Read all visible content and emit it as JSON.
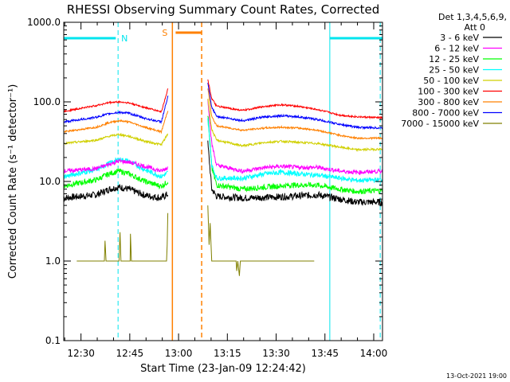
{
  "chart_data": {
    "type": "line",
    "title": "RHESSI Observing Summary Count Rates, Corrected",
    "xlabel": "Start Time (23-Jan-09 12:24:42)",
    "ylabel": "Corrected Count Rate (s⁻¹ detector⁻¹)",
    "y_scale": "log",
    "ylim": [
      0.1,
      1000
    ],
    "xlim_min": [
      0,
      98
    ],
    "x_ticks": [
      {
        "label": "12:30",
        "min": 5.3
      },
      {
        "label": "12:45",
        "min": 20.3
      },
      {
        "label": "13:00",
        "min": 35.3
      },
      {
        "label": "13:15",
        "min": 50.3
      },
      {
        "label": "13:30",
        "min": 65.3
      },
      {
        "label": "13:45",
        "min": 80.3
      },
      {
        "label": "14:00",
        "min": 95.3
      }
    ],
    "y_ticks": [
      {
        "label": "0.1",
        "value": 0.1
      },
      {
        "label": "1.0",
        "value": 1
      },
      {
        "label": "10.0",
        "value": 10
      },
      {
        "label": "100.0",
        "value": 100
      },
      {
        "label": "1000.0",
        "value": 1000
      }
    ],
    "legend_header": [
      "Det 1,3,4,5,6,9,",
      "Att 0"
    ],
    "legend_position": "right",
    "gap_min": [
      32.4,
      44.2
    ],
    "series": [
      {
        "name": "3 - 6 keV",
        "color": "#000000",
        "noise": 0.1,
        "points": [
          [
            0,
            6.2
          ],
          [
            10,
            6.8
          ],
          [
            14,
            8
          ],
          [
            17,
            8.5
          ],
          [
            20,
            8
          ],
          [
            25,
            6.7
          ],
          [
            30,
            6.2
          ],
          [
            32.1,
            7
          ]
        ],
        "points2": [
          [
            44.3,
            30
          ],
          [
            45.5,
            8
          ],
          [
            47,
            6.5
          ],
          [
            55,
            6.2
          ],
          [
            62,
            6.3
          ],
          [
            70,
            6.5
          ],
          [
            78,
            6.8
          ],
          [
            85,
            6
          ],
          [
            90,
            5.5
          ],
          [
            98,
            5.5
          ]
        ]
      },
      {
        "name": "6 - 12 keV",
        "color": "#ff00ff",
        "noise": 0.06,
        "points": [
          [
            0,
            13.5
          ],
          [
            10,
            14.5
          ],
          [
            14,
            16.5
          ],
          [
            17,
            18
          ],
          [
            20,
            17.5
          ],
          [
            25,
            15.5
          ],
          [
            30,
            13.5
          ],
          [
            32.1,
            15
          ]
        ],
        "points2": [
          [
            44.3,
            110
          ],
          [
            45.5,
            30
          ],
          [
            47,
            16
          ],
          [
            55,
            13.5
          ],
          [
            62,
            15
          ],
          [
            67,
            15.5
          ],
          [
            72,
            15
          ],
          [
            78,
            15
          ],
          [
            85,
            13.5
          ],
          [
            90,
            13
          ],
          [
            98,
            13.5
          ]
        ]
      },
      {
        "name": "12 - 25 keV",
        "color": "#00ff00",
        "noise": 0.08,
        "points": [
          [
            0,
            8.8
          ],
          [
            10,
            10.5
          ],
          [
            14,
            12.5
          ],
          [
            17,
            13.5
          ],
          [
            20,
            12.5
          ],
          [
            25,
            10
          ],
          [
            30,
            8.7
          ],
          [
            32.1,
            10
          ]
        ],
        "points2": [
          [
            44.3,
            70
          ],
          [
            45.5,
            15
          ],
          [
            47,
            9
          ],
          [
            55,
            8
          ],
          [
            62,
            8.5
          ],
          [
            70,
            9
          ],
          [
            78,
            9
          ],
          [
            85,
            8
          ],
          [
            90,
            7.5
          ],
          [
            98,
            7.7
          ]
        ]
      },
      {
        "name": "25 - 50 keV",
        "color": "#00ffff",
        "noise": 0.07,
        "points": [
          [
            0,
            11.5
          ],
          [
            10,
            14
          ],
          [
            14,
            17
          ],
          [
            17,
            19
          ],
          [
            20,
            18
          ],
          [
            25,
            14
          ],
          [
            30,
            11.5
          ],
          [
            32.1,
            13
          ]
        ],
        "points2": [
          [
            44.3,
            60
          ],
          [
            45.5,
            16
          ],
          [
            47,
            11
          ],
          [
            55,
            11
          ],
          [
            62,
            12.5
          ],
          [
            67,
            13
          ],
          [
            72,
            12.5
          ],
          [
            78,
            12
          ],
          [
            85,
            11
          ],
          [
            90,
            10.3
          ],
          [
            98,
            10.5
          ]
        ]
      },
      {
        "name": "50 - 100 keV",
        "color": "#d0d000",
        "noise": 0.03,
        "points": [
          [
            0,
            30
          ],
          [
            10,
            33
          ],
          [
            14,
            37
          ],
          [
            17,
            39
          ],
          [
            20,
            37
          ],
          [
            25,
            32
          ],
          [
            30,
            29
          ],
          [
            32.1,
            40
          ]
        ],
        "points2": [
          [
            44.3,
            110
          ],
          [
            45.5,
            45
          ],
          [
            47,
            33
          ],
          [
            55,
            28
          ],
          [
            62,
            31
          ],
          [
            67,
            32
          ],
          [
            72,
            31
          ],
          [
            78,
            30
          ],
          [
            85,
            27
          ],
          [
            90,
            25
          ],
          [
            98,
            25.5
          ]
        ]
      },
      {
        "name": "100 - 300 keV",
        "color": "#ff0000",
        "noise": 0.025,
        "points": [
          [
            0,
            76
          ],
          [
            10,
            90
          ],
          [
            14,
            98
          ],
          [
            17,
            100
          ],
          [
            20,
            97
          ],
          [
            25,
            85
          ],
          [
            30,
            75
          ],
          [
            32.1,
            150
          ]
        ],
        "points2": [
          [
            44.3,
            190
          ],
          [
            45.5,
            110
          ],
          [
            47,
            88
          ],
          [
            55,
            78
          ],
          [
            62,
            88
          ],
          [
            67,
            92
          ],
          [
            72,
            88
          ],
          [
            78,
            80
          ],
          [
            85,
            68
          ],
          [
            90,
            65
          ],
          [
            98,
            63
          ]
        ]
      },
      {
        "name": "300 - 800 keV",
        "color": "#ff8000",
        "noise": 0.025,
        "points": [
          [
            0,
            42
          ],
          [
            10,
            48
          ],
          [
            14,
            55
          ],
          [
            17,
            58
          ],
          [
            20,
            56
          ],
          [
            25,
            48
          ],
          [
            30,
            42
          ],
          [
            32.1,
            80
          ]
        ],
        "points2": [
          [
            44.3,
            150
          ],
          [
            45.5,
            65
          ],
          [
            47,
            50
          ],
          [
            55,
            44
          ],
          [
            62,
            47
          ],
          [
            67,
            48
          ],
          [
            72,
            47
          ],
          [
            78,
            44
          ],
          [
            85,
            38
          ],
          [
            90,
            35
          ],
          [
            98,
            35
          ]
        ]
      },
      {
        "name": "800 - 7000 keV",
        "color": "#0000ff",
        "noise": 0.03,
        "points": [
          [
            0,
            56
          ],
          [
            10,
            64
          ],
          [
            14,
            71
          ],
          [
            17,
            74
          ],
          [
            20,
            72
          ],
          [
            25,
            62
          ],
          [
            30,
            56
          ],
          [
            32.1,
            120
          ]
        ],
        "points2": [
          [
            44.3,
            170
          ],
          [
            45.5,
            85
          ],
          [
            47,
            66
          ],
          [
            55,
            58
          ],
          [
            62,
            65
          ],
          [
            67,
            67
          ],
          [
            72,
            65
          ],
          [
            78,
            60
          ],
          [
            85,
            52
          ],
          [
            90,
            48
          ],
          [
            98,
            47
          ]
        ]
      },
      {
        "name": "7000 - 15000 keV",
        "color": "#808000",
        "noise": 0,
        "points": [
          [
            4,
            1
          ],
          [
            12.5,
            1
          ],
          [
            12.7,
            1.8
          ],
          [
            13,
            1
          ],
          [
            17,
            1
          ],
          [
            17.3,
            2.3
          ],
          [
            17.6,
            1
          ],
          [
            19,
            1
          ],
          [
            20.4,
            1
          ],
          [
            20.5,
            2.2
          ],
          [
            20.8,
            1
          ],
          [
            22,
            1
          ],
          [
            30,
            1
          ],
          [
            31.6,
            1
          ],
          [
            31.8,
            1.6
          ],
          [
            32,
            4
          ]
        ],
        "points2": [
          [
            44.3,
            5
          ],
          [
            44.7,
            1.6
          ],
          [
            45,
            3
          ],
          [
            45.5,
            1
          ],
          [
            50,
            1
          ],
          [
            53,
            1
          ],
          [
            53.2,
            0.75
          ],
          [
            53.5,
            1
          ],
          [
            54,
            0.65
          ],
          [
            54.3,
            1
          ],
          [
            56,
            1
          ],
          [
            70,
            1
          ],
          [
            77,
            1
          ]
        ]
      }
    ],
    "annotations": [
      {
        "label": "N",
        "color": "#00e5ee"
      },
      {
        "label": "S",
        "color": "#ff8000"
      }
    ],
    "night_bars_min": [
      [
        0,
        16
      ],
      [
        81.8,
        98
      ]
    ],
    "saa_bar_min": [
      34.4,
      42.4
    ],
    "night_lines_min": [
      [
        0,
        "solid"
      ],
      [
        16.7,
        "dash"
      ],
      [
        81.8,
        "solid"
      ],
      [
        97.3,
        "dash"
      ]
    ],
    "saa_lines_min": [
      [
        33.4,
        "solid"
      ],
      [
        42.4,
        "dash"
      ]
    ]
  },
  "timestamp": "13-Oct-2021 19:00"
}
